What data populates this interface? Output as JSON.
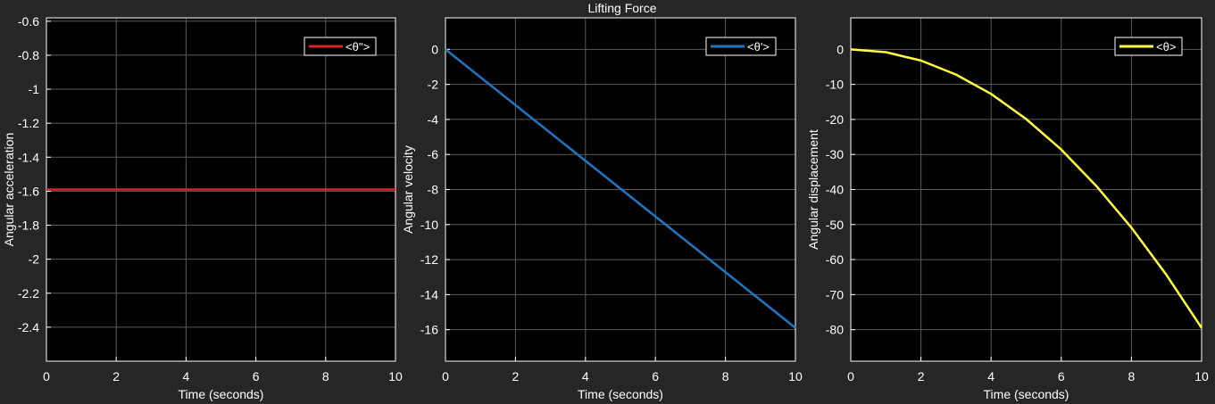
{
  "figure_title": "Lifting Force",
  "colors": {
    "background": "#262626",
    "axes_background": "#000000",
    "grid": "#5a5a5a",
    "axis": "#ffffff",
    "text": "#ffffff"
  },
  "chart_data": [
    {
      "type": "line",
      "title": "",
      "xlabel": "Time (seconds)",
      "ylabel": "Angular acceleration",
      "xlim": [
        0,
        10
      ],
      "ylim": [
        -2.6,
        -0.58
      ],
      "xticks": [
        0,
        2,
        4,
        6,
        8,
        10
      ],
      "xtick_labels": [
        "0",
        "2",
        "4",
        "6",
        "8",
        "10"
      ],
      "yticks": [
        -2.4,
        -2.2,
        -2,
        -1.8,
        -1.6,
        -1.4,
        -1.2,
        -1,
        -0.8,
        -0.6
      ],
      "ytick_labels": [
        "-2.4",
        "-2.2",
        "-2",
        "-1.8",
        "-1.6",
        "-1.4",
        "-1.2",
        "-1",
        "-0.8",
        "-0.6"
      ],
      "grid": true,
      "legend_position": "top-right",
      "series": [
        {
          "name": "<θ''>",
          "color": "#d62728",
          "x": [
            0,
            10
          ],
          "y": [
            -1.59,
            -1.59
          ]
        }
      ]
    },
    {
      "type": "line",
      "title": "",
      "xlabel": "Time (seconds)",
      "ylabel": "Angular velocity",
      "xlim": [
        0,
        10
      ],
      "ylim": [
        -17.8,
        1.8
      ],
      "xticks": [
        0,
        2,
        4,
        6,
        8,
        10
      ],
      "xtick_labels": [
        "0",
        "2",
        "4",
        "6",
        "8",
        "10"
      ],
      "yticks": [
        -16,
        -14,
        -12,
        -10,
        -8,
        -6,
        -4,
        -2,
        0
      ],
      "ytick_labels": [
        "-16",
        "-14",
        "-12",
        "-10",
        "-8",
        "-6",
        "-4",
        "-2",
        "0"
      ],
      "grid": true,
      "legend_position": "top-right",
      "series": [
        {
          "name": "<θ'>",
          "color": "#1f77c4",
          "x": [
            0,
            10
          ],
          "y": [
            0,
            -15.9
          ]
        }
      ]
    },
    {
      "type": "line",
      "title": "",
      "xlabel": "Time (seconds)",
      "ylabel": "Angular displacement",
      "xlim": [
        0,
        10
      ],
      "ylim": [
        -89,
        9
      ],
      "xticks": [
        0,
        2,
        4,
        6,
        8,
        10
      ],
      "xtick_labels": [
        "0",
        "2",
        "4",
        "6",
        "8",
        "10"
      ],
      "yticks": [
        -80,
        -70,
        -60,
        -50,
        -40,
        -30,
        -20,
        -10,
        0
      ],
      "ytick_labels": [
        "-80",
        "-70",
        "-60",
        "-50",
        "-40",
        "-30",
        "-20",
        "-10",
        "0"
      ],
      "grid": true,
      "legend_position": "top-right",
      "series": [
        {
          "name": "<θ>",
          "color": "#ffff3c",
          "x": [
            0,
            1,
            2,
            3,
            4,
            5,
            6,
            7,
            8,
            9,
            10
          ],
          "y": [
            0,
            -0.8,
            -3.2,
            -7.2,
            -12.7,
            -19.9,
            -28.6,
            -39.0,
            -50.9,
            -64.4,
            -79.5
          ]
        }
      ]
    }
  ]
}
